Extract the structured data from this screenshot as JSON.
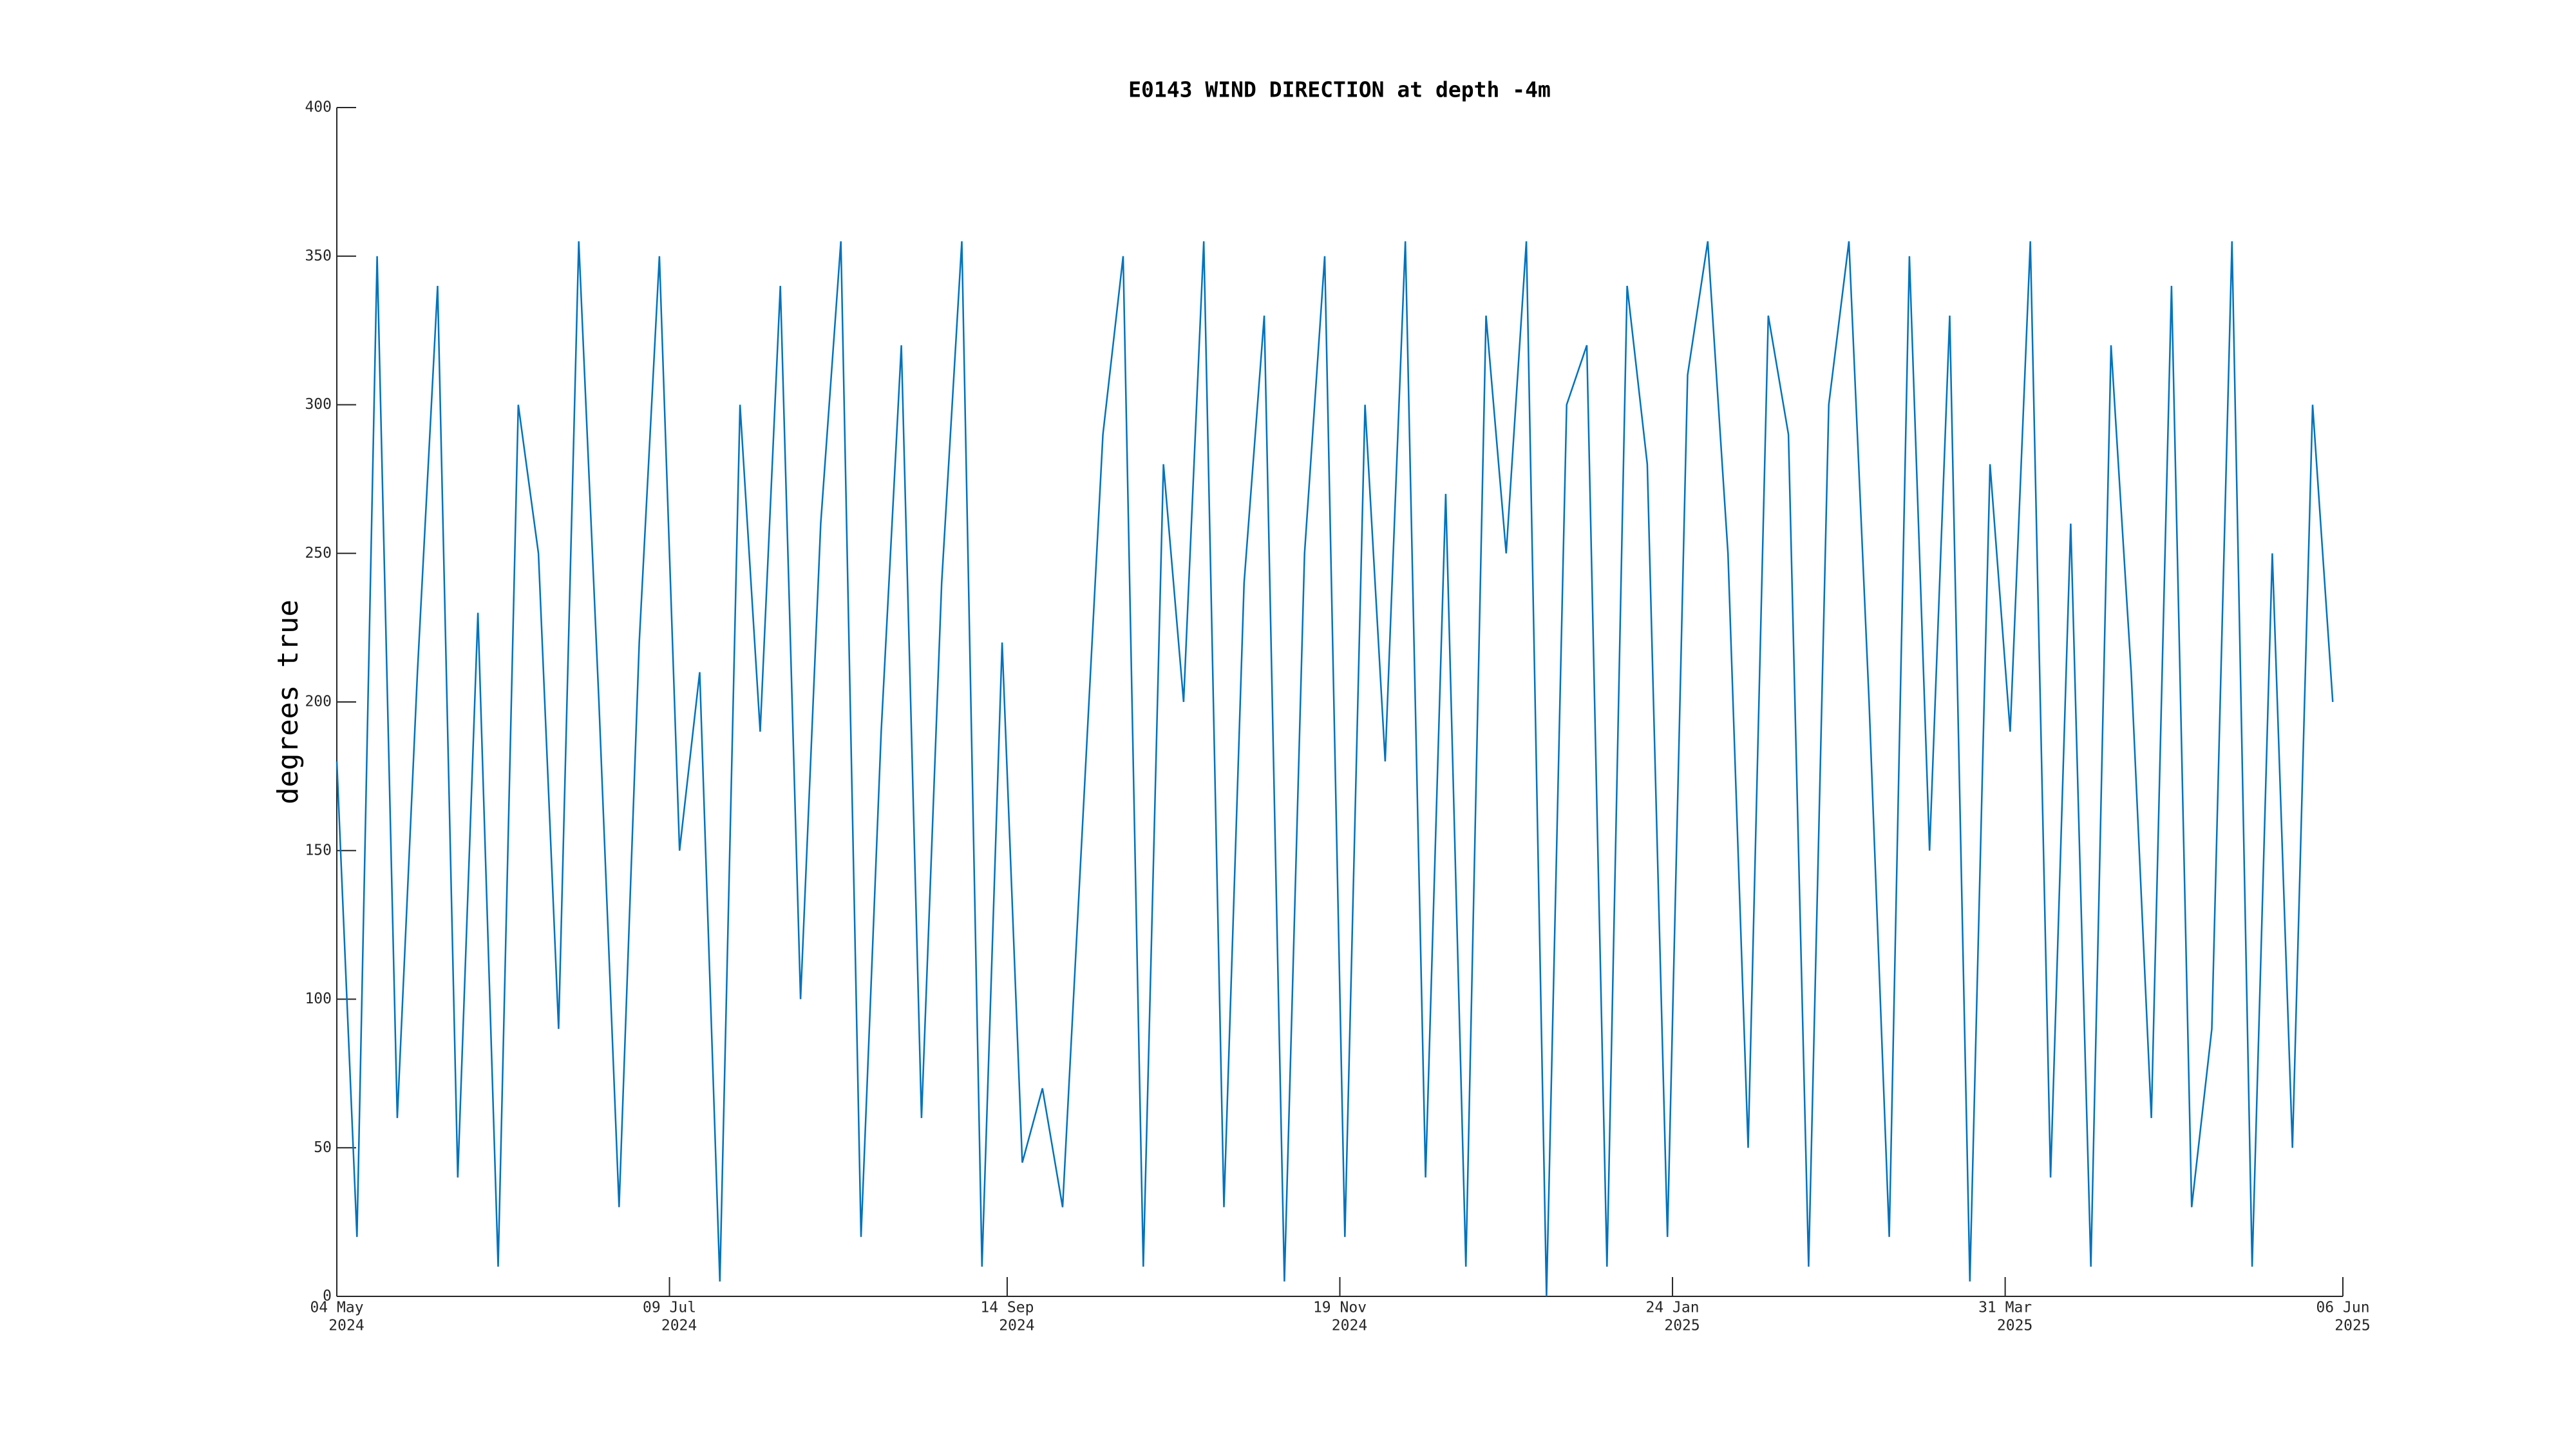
{
  "chart_data": {
    "type": "line",
    "title": "E0143 WIND DIRECTION at depth -4m",
    "ylabel": "degrees true",
    "x": [
      "2024-05-04",
      "2024-05-08",
      "2024-05-12",
      "2024-05-16",
      "2024-05-20",
      "2024-05-24",
      "2024-05-28",
      "2024-06-01",
      "2024-06-05",
      "2024-06-09",
      "2024-06-13",
      "2024-06-17",
      "2024-06-21",
      "2024-06-25",
      "2024-06-29",
      "2024-07-03",
      "2024-07-07",
      "2024-07-11",
      "2024-07-15",
      "2024-07-19",
      "2024-07-23",
      "2024-07-27",
      "2024-07-31",
      "2024-08-04",
      "2024-08-08",
      "2024-08-12",
      "2024-08-16",
      "2024-08-20",
      "2024-08-24",
      "2024-08-28",
      "2024-09-01",
      "2024-09-05",
      "2024-09-09",
      "2024-09-13",
      "2024-09-17",
      "2024-09-21",
      "2024-09-25",
      "2024-09-29",
      "2024-10-03",
      "2024-10-07",
      "2024-10-11",
      "2024-10-15",
      "2024-10-19",
      "2024-10-23",
      "2024-10-27",
      "2024-10-31",
      "2024-11-04",
      "2024-11-08",
      "2024-11-12",
      "2024-11-16",
      "2024-11-20",
      "2024-11-24",
      "2024-11-28",
      "2024-12-02",
      "2024-12-06",
      "2024-12-10",
      "2024-12-14",
      "2024-12-18",
      "2024-12-22",
      "2024-12-26",
      "2024-12-30",
      "2025-01-03",
      "2025-01-07",
      "2025-01-11",
      "2025-01-15",
      "2025-01-19",
      "2025-01-23",
      "2025-01-27",
      "2025-01-31",
      "2025-02-04",
      "2025-02-08",
      "2025-02-12",
      "2025-02-16",
      "2025-02-20",
      "2025-02-24",
      "2025-02-28",
      "2025-03-04",
      "2025-03-08",
      "2025-03-12",
      "2025-03-16",
      "2025-03-20",
      "2025-03-24",
      "2025-03-28",
      "2025-04-01",
      "2025-04-05",
      "2025-04-09",
      "2025-04-13",
      "2025-04-17",
      "2025-04-21",
      "2025-04-25",
      "2025-04-29",
      "2025-05-03",
      "2025-05-07",
      "2025-05-11",
      "2025-05-15",
      "2025-05-19",
      "2025-05-23",
      "2025-05-27",
      "2025-05-31",
      "2025-06-04"
    ],
    "series": [
      {
        "color": "#0072bd",
        "values": [
          180,
          20,
          350,
          60,
          210,
          340,
          40,
          230,
          10,
          300,
          250,
          90,
          355,
          200,
          30,
          220,
          350,
          150,
          210,
          5,
          300,
          190,
          340,
          100,
          260,
          355,
          20,
          190,
          320,
          60,
          240,
          355,
          10,
          220,
          45,
          70,
          30,
          160,
          290,
          350,
          10,
          280,
          200,
          355,
          30,
          240,
          330,
          5,
          250,
          350,
          20,
          300,
          180,
          355,
          40,
          270,
          10,
          330,
          250,
          355,
          0,
          300,
          320,
          10,
          340,
          280,
          20,
          310,
          355,
          250,
          50,
          330,
          290,
          10,
          300,
          355,
          200,
          20,
          350,
          150,
          330,
          5,
          280,
          190,
          355,
          40,
          260,
          10,
          320,
          210,
          60,
          340,
          30,
          90,
          355,
          10,
          250,
          50,
          300,
          200
        ]
      }
    ],
    "xlim": [
      "2024-05-04",
      "2025-06-06"
    ],
    "xticks": [
      {
        "value": "2024-05-04",
        "label": [
          "04 May",
          "2024"
        ]
      },
      {
        "value": "2024-07-09",
        "label": [
          "09 Jul",
          "2024"
        ]
      },
      {
        "value": "2024-09-14",
        "label": [
          "14 Sep",
          "2024"
        ]
      },
      {
        "value": "2024-11-19",
        "label": [
          "19 Nov",
          "2024"
        ]
      },
      {
        "value": "2025-01-24",
        "label": [
          "24 Jan",
          "2025"
        ]
      },
      {
        "value": "2025-03-31",
        "label": [
          "31 Mar",
          "2025"
        ]
      },
      {
        "value": "2025-06-06",
        "label": [
          "06 Jun",
          "2025"
        ]
      }
    ],
    "ylim": [
      0,
      400
    ],
    "yticks": [
      0,
      50,
      100,
      150,
      200,
      250,
      300,
      350,
      400
    ]
  }
}
